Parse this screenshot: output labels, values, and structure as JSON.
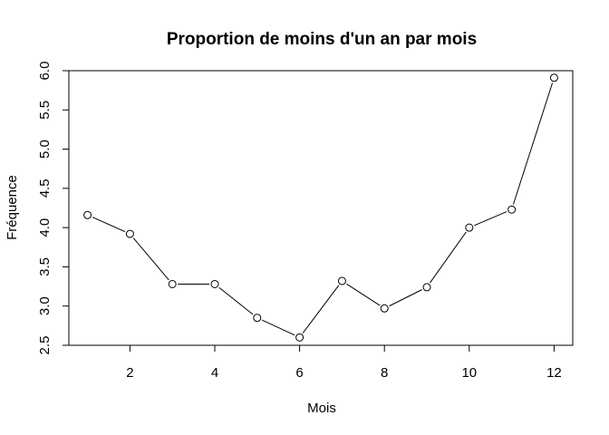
{
  "chart_data": {
    "type": "line",
    "title": "Proportion de moins d'un an par mois",
    "xlabel": "Mois",
    "ylabel": "Fréquence",
    "x": [
      1,
      2,
      3,
      4,
      5,
      6,
      7,
      8,
      9,
      10,
      11,
      12
    ],
    "series": [
      {
        "values": [
          4.16,
          3.92,
          3.28,
          3.28,
          2.85,
          2.6,
          3.32,
          2.97,
          3.24,
          4.0,
          4.23,
          5.91
        ],
        "style": "line-with-open-circles",
        "color": "#000000"
      }
    ],
    "xlim": [
      0.56,
      12.44
    ],
    "ylim": [
      2.5,
      6.0
    ],
    "xticks": [
      2,
      4,
      6,
      8,
      10,
      12
    ],
    "yticks": [
      2.5,
      3.0,
      3.5,
      4.0,
      4.5,
      5.0,
      5.5,
      6.0
    ],
    "grid": false,
    "legend": "none"
  }
}
